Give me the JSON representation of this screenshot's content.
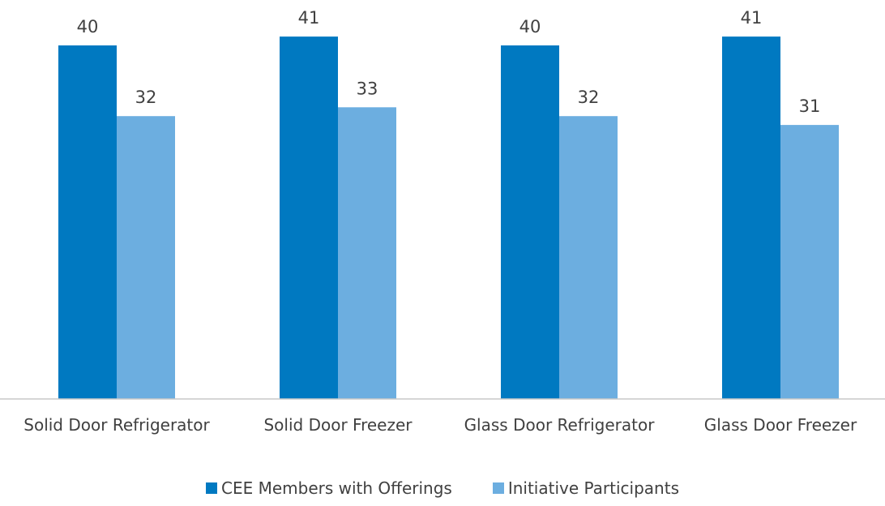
{
  "chart_data": {
    "type": "bar",
    "categories": [
      "Solid Door Refrigerator",
      "Solid Door Freezer",
      "Glass Door Refrigerator",
      "Glass Door Freezer"
    ],
    "series": [
      {
        "name": "CEE Members with Offerings",
        "color": "#0079c1",
        "values": [
          40,
          41,
          40,
          41
        ]
      },
      {
        "name": "Initiative Participants",
        "color": "#6caee0",
        "values": [
          32,
          33,
          32,
          31
        ]
      }
    ],
    "ylim": [
      0,
      45
    ],
    "legend": "bottom"
  }
}
